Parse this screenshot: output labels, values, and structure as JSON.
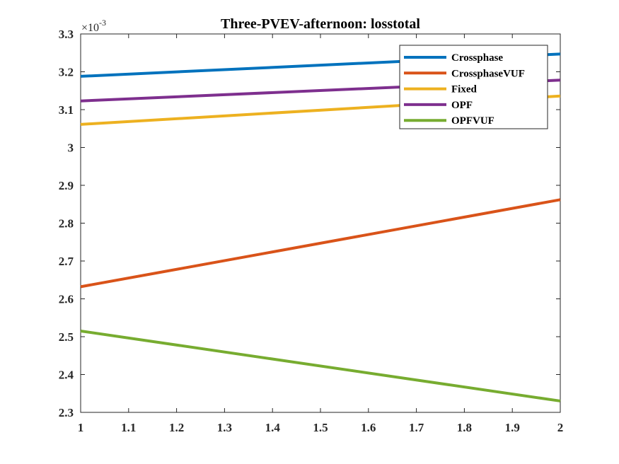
{
  "chart_data": {
    "type": "line",
    "title": "Three-PVEV-afternoon: losstotal",
    "xlabel": "",
    "ylabel": "",
    "y_exponent_label": "×10-3",
    "y_exponent_base": "×10",
    "y_exponent_power": "-3",
    "xlim": [
      1,
      2
    ],
    "ylim": [
      2.3,
      3.3
    ],
    "x_ticks": [
      "1",
      "1.1",
      "1.2",
      "1.3",
      "1.4",
      "1.5",
      "1.6",
      "1.7",
      "1.8",
      "1.9",
      "2"
    ],
    "y_ticks": [
      "2.3",
      "2.4",
      "2.5",
      "2.6",
      "2.7",
      "2.8",
      "2.9",
      "3",
      "3.1",
      "3.2",
      "3.3"
    ],
    "x": [
      1,
      2
    ],
    "series": [
      {
        "name": "Crossphase",
        "color": "#0072BD",
        "values": [
          3.188,
          3.247
        ]
      },
      {
        "name": "CrossphaseVUF",
        "color": "#D95319",
        "values": [
          2.632,
          2.862
        ]
      },
      {
        "name": "Fixed",
        "color": "#EDB120",
        "values": [
          3.061,
          3.136
        ]
      },
      {
        "name": "OPF",
        "color": "#7E2F8E",
        "values": [
          3.123,
          3.178
        ]
      },
      {
        "name": "OPFVUF",
        "color": "#77AC30",
        "values": [
          2.515,
          2.33
        ]
      }
    ],
    "grid": false,
    "legend_position": "top-right"
  }
}
